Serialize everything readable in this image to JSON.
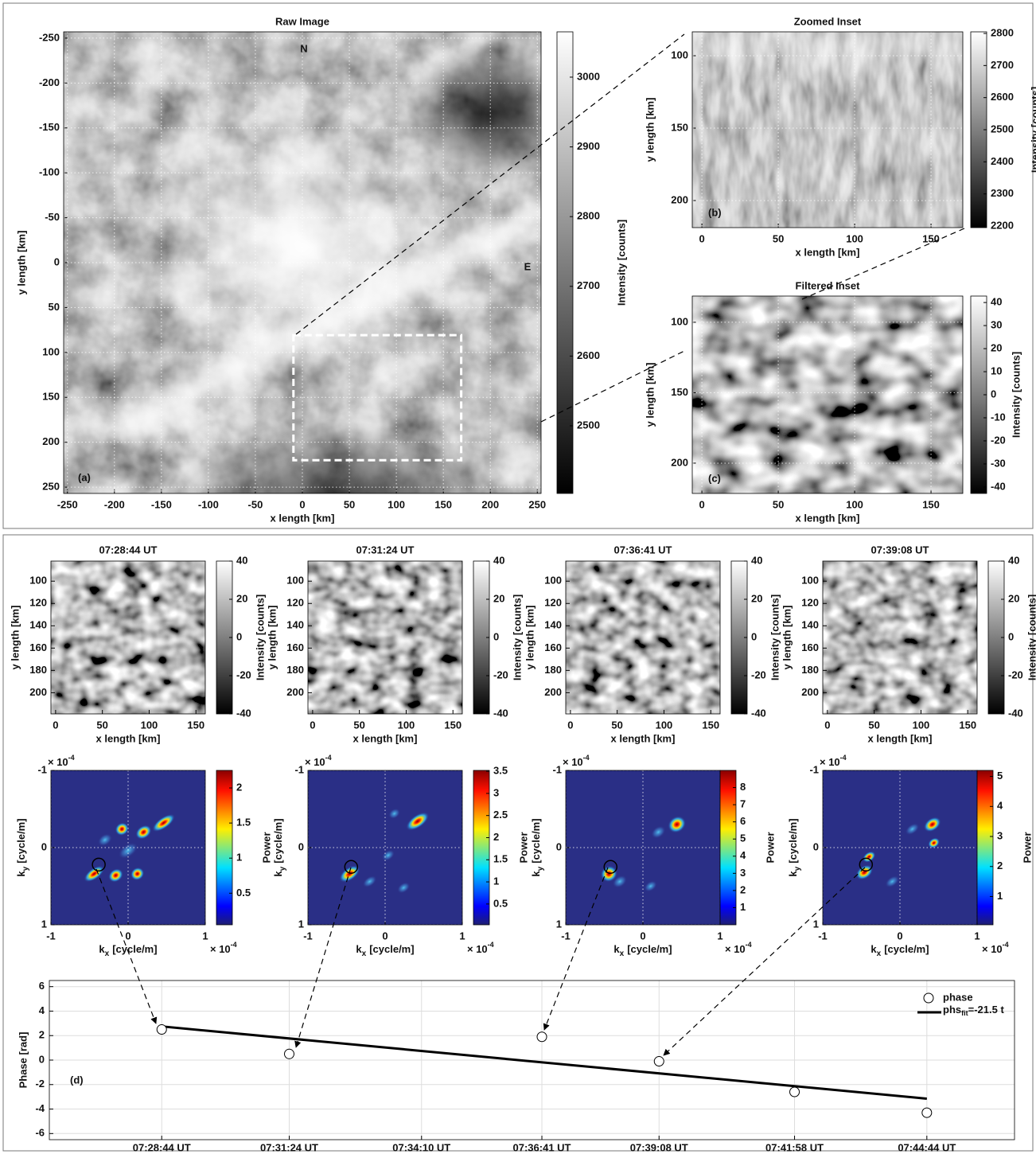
{
  "chart_data": [
    {
      "type": "image",
      "title": "Raw Image",
      "xlabel": "x length [km]",
      "ylabel": "y length [km]",
      "xlim": [
        -254,
        254
      ],
      "ylim": [
        -257,
        257
      ],
      "xticks": [
        -250,
        -200,
        -150,
        -100,
        -50,
        0,
        50,
        100,
        150,
        200,
        250
      ],
      "yticks": [
        -250,
        -200,
        -150,
        -100,
        -50,
        0,
        50,
        100,
        150,
        200,
        250
      ],
      "grid": true,
      "colorbar": {
        "label": "Intensity [counts]",
        "colormap": "gray",
        "lim": [
          2403,
          3065
        ],
        "ticks": [
          2500,
          2600,
          2700,
          2800,
          2900,
          3000
        ]
      },
      "annotations": [
        "N",
        "E",
        "(a)"
      ],
      "inset": {
        "xlim": [
          -9.5,
          169
        ],
        "ylim": [
          80.8,
          220
        ]
      }
    },
    {
      "type": "image",
      "title": "Zoomed Inset",
      "xlabel": "x length [km]",
      "ylabel": "y length [km]",
      "xlim": [
        -6.3,
        170.8
      ],
      "ylim": [
        83.5,
        218.7
      ],
      "xticks": [
        0,
        50,
        100,
        150
      ],
      "yticks": [
        100,
        150,
        200
      ],
      "grid": true,
      "colorbar": {
        "label": "Intensity [counts]",
        "colormap": "gray",
        "lim": [
          2195,
          2805
        ],
        "ticks": [
          2200,
          2300,
          2400,
          2500,
          2600,
          2700,
          2800
        ]
      },
      "annotations": [
        "(b)"
      ]
    },
    {
      "type": "image",
      "title": "Filtered Inset",
      "xlabel": "x length [km]",
      "ylabel": "y length [km]",
      "xlim": [
        -6.3,
        170.8
      ],
      "ylim": [
        81.4,
        221.5
      ],
      "xticks": [
        0,
        50,
        100,
        150
      ],
      "yticks": [
        100,
        150,
        200
      ],
      "grid": true,
      "colorbar": {
        "label": "Intensity [counts]",
        "colormap": "gray",
        "lim": [
          -42.8,
          42.8
        ],
        "ticks": [
          -40,
          -30,
          -20,
          -10,
          0,
          10,
          20,
          30,
          40
        ]
      },
      "annotations": [
        "(c)"
      ]
    },
    {
      "type": "image",
      "title": "07:28:44 UT",
      "xlabel": "x length [km]",
      "ylabel": "y length [km]",
      "xlim": [
        -5,
        160
      ],
      "ylim": [
        82,
        219
      ],
      "xticks": [
        0,
        50,
        100,
        150
      ],
      "yticks": [
        100,
        120,
        140,
        160,
        180,
        200
      ],
      "grid": false,
      "colorbar": {
        "label": "Intensity [counts]",
        "colormap": "gray",
        "lim": [
          -40,
          40
        ],
        "ticks": [
          -40,
          -20,
          0,
          20,
          40
        ]
      }
    },
    {
      "type": "image",
      "title": "07:31:24 UT",
      "xlabel": "x length [km]",
      "ylabel": "y length [km]",
      "xlim": [
        -5,
        160
      ],
      "ylim": [
        82,
        219
      ],
      "xticks": [
        0,
        50,
        100,
        150
      ],
      "yticks": [
        100,
        120,
        140,
        160,
        180,
        200
      ],
      "grid": false,
      "colorbar": {
        "label": "Intensity [counts]",
        "colormap": "gray",
        "lim": [
          -40,
          40
        ],
        "ticks": [
          -40,
          -20,
          0,
          20,
          40
        ]
      }
    },
    {
      "type": "image",
      "title": "07:36:41 UT",
      "xlabel": "x length [km]",
      "ylabel": "y length [km]",
      "xlim": [
        -5,
        160
      ],
      "ylim": [
        82,
        219
      ],
      "xticks": [
        0,
        50,
        100,
        150
      ],
      "yticks": [
        100,
        120,
        140,
        160,
        180,
        200
      ],
      "grid": false,
      "colorbar": {
        "label": "Intensity [counts]",
        "colormap": "gray",
        "lim": [
          -40,
          40
        ],
        "ticks": [
          -40,
          -20,
          0,
          20,
          40
        ]
      }
    },
    {
      "type": "image",
      "title": "07:39:08 UT",
      "xlabel": "x length [km]",
      "ylabel": "y length [km]",
      "xlim": [
        -5,
        160
      ],
      "ylim": [
        82,
        219
      ],
      "xticks": [
        0,
        50,
        100,
        150
      ],
      "yticks": [
        100,
        120,
        140,
        160,
        180,
        200
      ],
      "grid": false,
      "colorbar": {
        "label": "Intensity [counts]",
        "colormap": "gray",
        "lim": [
          -40,
          40
        ],
        "ticks": [
          -40,
          -20,
          0,
          20,
          40
        ]
      }
    },
    {
      "type": "spectrum",
      "xlabel": {
        "base": "k",
        "sub": "x",
        "unit": "[cycle/m]"
      },
      "ylabel": {
        "base": "k",
        "sub": "y",
        "unit": "[cycle/m]"
      },
      "multiplier": {
        "base": "× 10",
        "exp": "-4"
      },
      "xlim": [
        -1,
        1
      ],
      "ylim": [
        -1,
        1
      ],
      "xticks": [
        -1,
        0,
        1
      ],
      "yticks": [
        -1,
        0,
        1
      ],
      "grid": true,
      "colorbar": {
        "label": "Power",
        "colormap": "jet",
        "lim": [
          0.05,
          2.25
        ],
        "ticks": [
          0.5,
          1,
          1.5,
          2
        ]
      },
      "selected": {
        "x": -0.38,
        "y": 0.22
      }
    },
    {
      "type": "spectrum",
      "xlabel": {
        "base": "k",
        "sub": "x",
        "unit": "[cycle/m]"
      },
      "ylabel": {
        "base": "k",
        "sub": "y",
        "unit": "[cycle/m]"
      },
      "multiplier": {
        "base": "× 10",
        "exp": "-4"
      },
      "xlim": [
        -1,
        1
      ],
      "ylim": [
        -1,
        1
      ],
      "xticks": [
        -1,
        0,
        1
      ],
      "yticks": [
        -1,
        0,
        1
      ],
      "grid": true,
      "colorbar": {
        "label": "Power",
        "colormap": "jet",
        "lim": [
          0.03,
          3.52
        ],
        "ticks": [
          0.5,
          1,
          1.5,
          2,
          2.5,
          3,
          3.5
        ]
      },
      "selected": {
        "x": -0.44,
        "y": 0.25
      }
    },
    {
      "type": "spectrum",
      "xlabel": {
        "base": "k",
        "sub": "x",
        "unit": "[cycle/m]"
      },
      "ylabel": {
        "base": "k",
        "sub": "y",
        "unit": "[cycle/m]"
      },
      "multiplier": {
        "base": "× 10",
        "exp": "-4"
      },
      "xlim": [
        -1,
        1
      ],
      "ylim": [
        -1,
        1
      ],
      "xticks": [
        -1,
        0,
        1
      ],
      "yticks": [
        -1,
        0,
        1
      ],
      "grid": true,
      "colorbar": {
        "label": "Power",
        "colormap": "jet",
        "lim": [
          0,
          9
        ],
        "ticks": [
          1,
          2,
          3,
          4,
          5,
          6,
          7,
          8
        ]
      },
      "selected": {
        "x": -0.42,
        "y": 0.25
      }
    },
    {
      "type": "spectrum",
      "xlabel": {
        "base": "k",
        "sub": "x",
        "unit": "[cycle/m]"
      },
      "ylabel": {
        "base": "k",
        "sub": "y",
        "unit": "[cycle/m]"
      },
      "multiplier": {
        "base": "× 10",
        "exp": "-4"
      },
      "xlim": [
        -1,
        1
      ],
      "ylim": [
        -1,
        1
      ],
      "xticks": [
        -1,
        0,
        1
      ],
      "yticks": [
        -1,
        0,
        1
      ],
      "grid": true,
      "colorbar": {
        "label": "Power",
        "colormap": "jet",
        "lim": [
          0.06,
          5.2
        ],
        "ticks": [
          1,
          2,
          3,
          4,
          5
        ]
      },
      "selected": {
        "x": -0.44,
        "y": 0.22
      }
    },
    {
      "type": "scatter",
      "ylabel": "Phase [rad]",
      "annotation": "(d)",
      "x": [
        26924,
        27084,
        27401,
        27548,
        27718,
        27884
      ],
      "values": [
        2.5,
        0.5,
        1.9,
        -0.1,
        -2.6,
        -4.3
      ],
      "name": "phase",
      "fit": {
        "name": "phs",
        "name_sub": "fit",
        "name_rest": "=-21.5 t",
        "x": [
          26924,
          27884
        ],
        "y": [
          2.75,
          -3.15
        ]
      },
      "xlim": [
        26783,
        27994
      ],
      "ylim": [
        -6.5,
        6.5
      ],
      "xticks": [
        {
          "value": 26924,
          "label": "07:28:44 UT"
        },
        {
          "value": 27084,
          "label": "07:31:24 UT"
        },
        {
          "value": 27250,
          "label": "07:34:10 UT"
        },
        {
          "value": 27401,
          "label": "07:36:41 UT"
        },
        {
          "value": 27548,
          "label": "07:39:08 UT"
        },
        {
          "value": 27718,
          "label": "07:41:58 UT"
        },
        {
          "value": 27884,
          "label": "07:44:44 UT"
        }
      ],
      "yticks": [
        -6,
        -4,
        -2,
        0,
        2,
        4,
        6
      ],
      "grid": true,
      "legend": "upper right"
    }
  ]
}
